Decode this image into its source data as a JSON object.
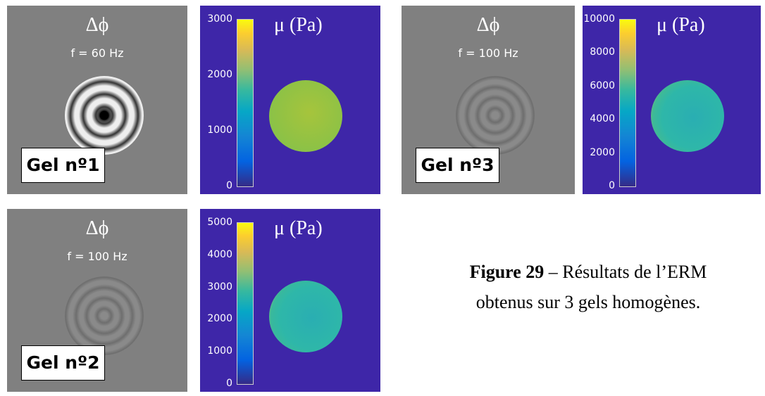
{
  "panels": [
    {
      "phase": {
        "symbol": "Δϕ",
        "frequency": "f = 60 Hz",
        "label": "Gel nº1"
      },
      "elastogram": {
        "title": "μ (Pa)",
        "clim": [
          0,
          3000
        ],
        "ticks": [
          0,
          1000,
          2000,
          3000
        ]
      }
    },
    {
      "phase": {
        "symbol": "Δϕ",
        "frequency": "f = 100 Hz",
        "label": "Gel nº2"
      },
      "elastogram": {
        "title": "μ (Pa)",
        "clim": [
          0,
          5000
        ],
        "ticks": [
          0,
          1000,
          2000,
          3000,
          4000,
          5000
        ]
      }
    },
    {
      "phase": {
        "symbol": "Δϕ",
        "frequency": "f = 100 Hz",
        "label": "Gel nº3"
      },
      "elastogram": {
        "title": "μ (Pa)",
        "clim": [
          0,
          10000
        ],
        "ticks": [
          0,
          2000,
          4000,
          6000,
          8000,
          10000
        ]
      }
    }
  ],
  "caption": {
    "label": "Figure 29",
    "text": "– Résultats de l’ERM obtenus sur 3 gels homogènes."
  }
}
